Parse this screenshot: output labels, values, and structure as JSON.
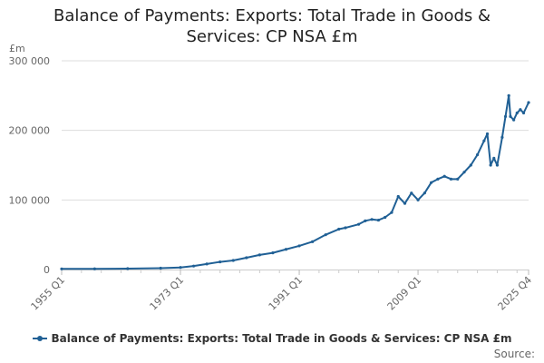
{
  "title_line1": "Balance of Payments: Exports: Total Trade in Goods &",
  "title_line2": "Services: CP NSA £m",
  "source_label": "Source:",
  "chart_data": {
    "type": "line",
    "title": "Balance of Payments: Exports: Total Trade in Goods & Services: CP NSA £m",
    "unit_label": "£m",
    "ylim": [
      0,
      300000
    ],
    "y_ticks": [
      0,
      100000,
      200000,
      300000
    ],
    "y_tick_labels": [
      "0",
      "100 000",
      "200 000",
      "300 000"
    ],
    "x_tick_labels": [
      "1955 Q1",
      "1973 Q1",
      "1991 Q1",
      "2009 Q1",
      "2025 Q4"
    ],
    "x_range": [
      1955.0,
      2025.75
    ],
    "grid": true,
    "legend_position": "bottom",
    "series": [
      {
        "name": "Balance of Payments: Exports: Total Trade in Goods & Services: CP NSA £m",
        "color": "#206095",
        "points": [
          [
            1955.0,
            900
          ],
          [
            1960.0,
            1000
          ],
          [
            1965.0,
            1300
          ],
          [
            1970.0,
            2000
          ],
          [
            1973.0,
            3000
          ],
          [
            1975.0,
            5000
          ],
          [
            1977.0,
            8000
          ],
          [
            1979.0,
            11000
          ],
          [
            1981.0,
            13000
          ],
          [
            1983.0,
            17000
          ],
          [
            1985.0,
            21000
          ],
          [
            1987.0,
            24000
          ],
          [
            1989.0,
            29000
          ],
          [
            1991.0,
            34000
          ],
          [
            1993.0,
            40000
          ],
          [
            1995.0,
            50000
          ],
          [
            1997.0,
            58000
          ],
          [
            1998.0,
            60000
          ],
          [
            2000.0,
            65000
          ],
          [
            2001.0,
            70000
          ],
          [
            2002.0,
            72000
          ],
          [
            2003.0,
            71000
          ],
          [
            2004.0,
            75000
          ],
          [
            2005.0,
            82000
          ],
          [
            2006.0,
            105000
          ],
          [
            2007.0,
            95000
          ],
          [
            2008.0,
            110000
          ],
          [
            2009.0,
            100000
          ],
          [
            2010.0,
            110000
          ],
          [
            2011.0,
            125000
          ],
          [
            2012.0,
            130000
          ],
          [
            2013.0,
            134000
          ],
          [
            2014.0,
            130000
          ],
          [
            2015.0,
            130000
          ],
          [
            2016.0,
            140000
          ],
          [
            2017.0,
            150000
          ],
          [
            2018.0,
            165000
          ],
          [
            2019.0,
            185000
          ],
          [
            2019.5,
            195000
          ],
          [
            2020.0,
            150000
          ],
          [
            2020.5,
            160000
          ],
          [
            2021.0,
            150000
          ],
          [
            2021.75,
            190000
          ],
          [
            2022.25,
            220000
          ],
          [
            2022.75,
            250000
          ],
          [
            2023.0,
            220000
          ],
          [
            2023.5,
            215000
          ],
          [
            2024.0,
            225000
          ],
          [
            2024.5,
            230000
          ],
          [
            2025.0,
            225000
          ],
          [
            2025.75,
            240000
          ]
        ]
      }
    ]
  }
}
